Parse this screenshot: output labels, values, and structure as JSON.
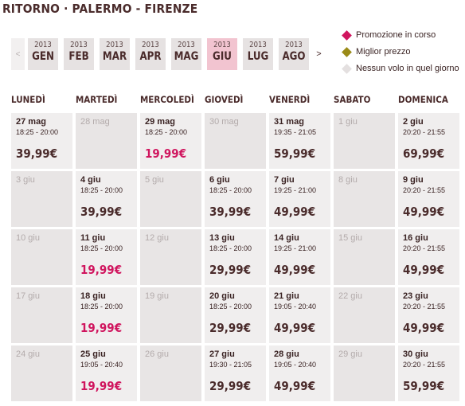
{
  "title": "RITORNO · PALERMO - FIRENZE",
  "colors": {
    "promo": "#d0155e",
    "best": "#9a8a17",
    "none": "#e4e0e0",
    "selected_month": "#f2c4d0"
  },
  "months": {
    "prev_icon": "<",
    "next_icon": ">",
    "items": [
      {
        "year": "2013",
        "label": "GEN"
      },
      {
        "year": "2013",
        "label": "FEB"
      },
      {
        "year": "2013",
        "label": "MAR"
      },
      {
        "year": "2013",
        "label": "APR"
      },
      {
        "year": "2013",
        "label": "MAG"
      },
      {
        "year": "2013",
        "label": "GIU",
        "selected": true
      },
      {
        "year": "2013",
        "label": "LUG"
      },
      {
        "year": "2013",
        "label": "AGO"
      }
    ]
  },
  "legend": [
    {
      "label": "Promozione in corso",
      "icon": "diamond-pink-icon"
    },
    {
      "label": "Miglior prezzo",
      "icon": "diamond-gold-icon"
    },
    {
      "label": "Nessun volo in quel giorno",
      "icon": "diamond-grey-icon"
    }
  ],
  "days": [
    "LUNEDÌ",
    "MARTEDÌ",
    "MERCOLEDÌ",
    "GIOVEDÌ",
    "VENERDÌ",
    "SABATO",
    "DOMENICA"
  ],
  "weeks": [
    [
      {
        "date": "27 mag",
        "time": "18:25 - 20:00",
        "price": "39,99€"
      },
      {
        "date": "28 mag"
      },
      {
        "date": "29 mag",
        "time": "18:25 - 20:00",
        "price": "19,99€",
        "promo": true
      },
      {
        "date": "30 mag"
      },
      {
        "date": "31 mag",
        "time": "19:35 - 21:05",
        "price": "59,99€"
      },
      {
        "date": "1 giu"
      },
      {
        "date": "2 giu",
        "time": "20:20 - 21:55",
        "price": "69,99€"
      }
    ],
    [
      {
        "date": "3 giu"
      },
      {
        "date": "4 giu",
        "time": "18:25 - 20:00",
        "price": "39,99€"
      },
      {
        "date": "5 giu"
      },
      {
        "date": "6 giu",
        "time": "18:25 - 20:00",
        "price": "39,99€"
      },
      {
        "date": "7 giu",
        "time": "19:25 - 21:00",
        "price": "49,99€"
      },
      {
        "date": "8 giu"
      },
      {
        "date": "9 giu",
        "time": "20:20 - 21:55",
        "price": "49,99€"
      }
    ],
    [
      {
        "date": "10 giu"
      },
      {
        "date": "11 giu",
        "time": "18:25 - 20:00",
        "price": "19,99€",
        "promo": true
      },
      {
        "date": "12 giu"
      },
      {
        "date": "13 giu",
        "time": "18:25 - 20:00",
        "price": "29,99€"
      },
      {
        "date": "14 giu",
        "time": "19:25 - 21:00",
        "price": "49,99€"
      },
      {
        "date": "15 giu"
      },
      {
        "date": "16 giu",
        "time": "20:20 - 21:55",
        "price": "49,99€"
      }
    ],
    [
      {
        "date": "17 giu"
      },
      {
        "date": "18 giu",
        "time": "18:25 - 20:00",
        "price": "19,99€",
        "promo": true
      },
      {
        "date": "19 giu"
      },
      {
        "date": "20 giu",
        "time": "18:25 - 20:00",
        "price": "29,99€"
      },
      {
        "date": "21 giu",
        "time": "19:05 - 20:40",
        "price": "49,99€"
      },
      {
        "date": "22 giu"
      },
      {
        "date": "23 giu",
        "time": "20:20 - 21:55",
        "price": "49,99€"
      }
    ],
    [
      {
        "date": "24 giu"
      },
      {
        "date": "25 giu",
        "time": "19:05 - 20:40",
        "price": "19,99€",
        "promo": true
      },
      {
        "date": "26 giu"
      },
      {
        "date": "27 giu",
        "time": "19:30 - 21:05",
        "price": "29,99€"
      },
      {
        "date": "28 giu",
        "time": "19:05 - 20:40",
        "price": "49,99€"
      },
      {
        "date": "29 giu"
      },
      {
        "date": "30 giu",
        "time": "20:20 - 21:55",
        "price": "59,99€"
      }
    ]
  ]
}
